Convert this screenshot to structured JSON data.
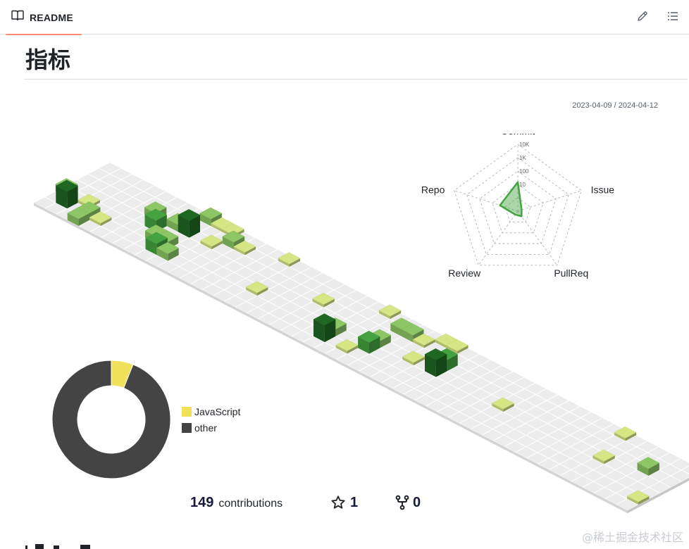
{
  "header": {
    "tab_label": "README",
    "edit_icon": "pencil-icon",
    "toc_icon": "list-unordered-icon",
    "book_icon": "book-icon"
  },
  "page": {
    "title": "指标",
    "date_range": "2023-04-09 / 2024-04-12",
    "watermark": "@稀土掘金技术社区"
  },
  "stats": {
    "contributions_count": "149",
    "contributions_label": "contributions",
    "stars": "1",
    "forks": "0",
    "star_icon": "star-icon",
    "fork_icon": "repo-forked-icon"
  },
  "colors": {
    "level1": "#d6e685",
    "level2": "#8cc665",
    "level3": "#44a340",
    "level4": "#1e6823",
    "empty": "#eeeeee",
    "javascript": "#f1e05a",
    "other": "#444444"
  },
  "chart_data": [
    {
      "type": "radar",
      "axes": [
        "Commit",
        "Issue",
        "PullReq",
        "Review",
        "Repo"
      ],
      "scale": "log",
      "ticks": [
        "10K",
        "1K",
        "100",
        "10"
      ],
      "values": [
        149,
        2,
        3,
        1,
        25
      ]
    },
    {
      "type": "pie",
      "labels": [
        "JavaScript",
        "other"
      ],
      "values": [
        6,
        94
      ],
      "legend": "right"
    },
    {
      "type": "heatmap",
      "weeks": 53,
      "days": 7,
      "cells": [
        {
          "w": 0,
          "d": 2,
          "v": 2
        },
        {
          "w": 1,
          "d": 1,
          "v": 4
        },
        {
          "w": 2,
          "d": 2,
          "v": 1
        },
        {
          "w": 3,
          "d": 0,
          "v": 2
        },
        {
          "w": 3,
          "d": 1,
          "v": 2
        },
        {
          "w": 4,
          "d": 1,
          "v": 1
        },
        {
          "w": 6,
          "d": 4,
          "v": 2
        },
        {
          "w": 7,
          "d": 3,
          "v": 3
        },
        {
          "w": 8,
          "d": 2,
          "v": 2
        },
        {
          "w": 8,
          "d": 4,
          "v": 2
        },
        {
          "w": 8,
          "d": 5,
          "v": 1
        },
        {
          "w": 9,
          "d": 1,
          "v": 3
        },
        {
          "w": 9,
          "d": 2,
          "v": 2
        },
        {
          "w": 9,
          "d": 4,
          "v": 4
        },
        {
          "w": 9,
          "d": 6,
          "v": 2
        },
        {
          "w": 10,
          "d": 1,
          "v": 2
        },
        {
          "w": 10,
          "d": 6,
          "v": 1
        },
        {
          "w": 11,
          "d": 4,
          "v": 1
        },
        {
          "w": 11,
          "d": 6,
          "v": 1
        },
        {
          "w": 12,
          "d": 5,
          "v": 2
        },
        {
          "w": 13,
          "d": 5,
          "v": 1
        },
        {
          "w": 16,
          "d": 6,
          "v": 1
        },
        {
          "w": 17,
          "d": 2,
          "v": 1
        },
        {
          "w": 21,
          "d": 4,
          "v": 1
        },
        {
          "w": 24,
          "d": 1,
          "v": 4
        },
        {
          "w": 24,
          "d": 2,
          "v": 2
        },
        {
          "w": 26,
          "d": 1,
          "v": 1
        },
        {
          "w": 27,
          "d": 2,
          "v": 3
        },
        {
          "w": 27,
          "d": 3,
          "v": 2
        },
        {
          "w": 27,
          "d": 5,
          "v": 2
        },
        {
          "w": 28,
          "d": 5,
          "v": 2
        },
        {
          "w": 25,
          "d": 6,
          "v": 1
        },
        {
          "w": 29,
          "d": 5,
          "v": 1
        },
        {
          "w": 31,
          "d": 4,
          "v": 1
        },
        {
          "w": 32,
          "d": 3,
          "v": 4
        },
        {
          "w": 32,
          "d": 4,
          "v": 3
        },
        {
          "w": 30,
          "d": 6,
          "v": 1
        },
        {
          "w": 31,
          "d": 6,
          "v": 1
        },
        {
          "w": 30,
          "d": 3,
          "v": 1
        },
        {
          "w": 38,
          "d": 3,
          "v": 1
        },
        {
          "w": 47,
          "d": 3,
          "v": 1
        },
        {
          "w": 46,
          "d": 6,
          "v": 1
        },
        {
          "w": 52,
          "d": 1,
          "v": 1
        },
        {
          "w": 50,
          "d": 4,
          "v": 2
        }
      ]
    }
  ]
}
